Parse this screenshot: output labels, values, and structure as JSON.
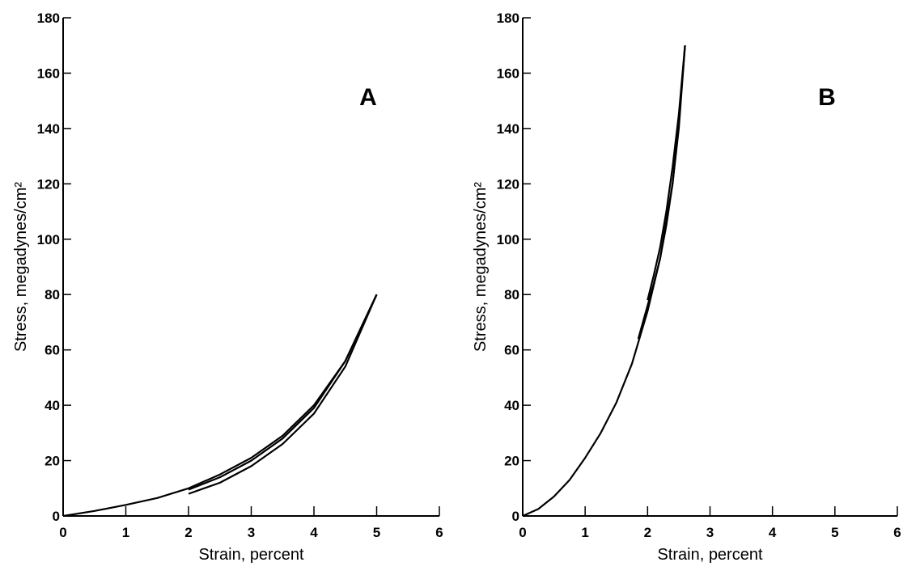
{
  "chart_data": [
    {
      "type": "line",
      "panel_label": "A",
      "xlabel": "Strain, percent",
      "ylabel": "Stress, megadynes/cm²",
      "xlim": [
        0,
        6
      ],
      "ylim": [
        0,
        180
      ],
      "xticks": [
        "0",
        "1",
        "2",
        "3",
        "4",
        "5",
        "6"
      ],
      "yticks": [
        "0",
        "20",
        "40",
        "60",
        "80",
        "100",
        "120",
        "140",
        "160",
        "180"
      ],
      "grid": false,
      "series": [
        {
          "x": [
            0,
            0.5,
            1,
            1.5,
            2,
            2.5,
            3,
            3.5,
            4,
            4.5,
            5
          ],
          "y": [
            0,
            1.8,
            4,
            6.5,
            10,
            15,
            21,
            29,
            40,
            56,
            80
          ]
        },
        {
          "x": [
            5,
            4.5,
            4,
            3.5,
            3,
            2.5,
            2
          ],
          "y": [
            80,
            54,
            37,
            26,
            18,
            12,
            8
          ]
        },
        {
          "x": [
            5,
            4.5,
            4,
            3.5,
            3,
            2.5,
            2
          ],
          "y": [
            80,
            56,
            39,
            28,
            20,
            14,
            9.5
          ]
        }
      ]
    },
    {
      "type": "line",
      "panel_label": "B",
      "xlabel": "Strain, percent",
      "ylabel": "Stress, megadynes/cm²",
      "xlim": [
        0,
        6
      ],
      "ylim": [
        0,
        180
      ],
      "xticks": [
        "0",
        "1",
        "2",
        "3",
        "4",
        "5",
        "6"
      ],
      "yticks": [
        "0",
        "20",
        "40",
        "60",
        "80",
        "100",
        "120",
        "140",
        "160",
        "180"
      ],
      "grid": false,
      "series": [
        {
          "x": [
            0,
            0.25,
            0.5,
            0.75,
            1,
            1.25,
            1.5,
            1.75,
            2,
            2.2,
            2.4,
            2.5,
            2.6
          ],
          "y": [
            0,
            2.5,
            7,
            13,
            21,
            30,
            41,
            55,
            74,
            93,
            120,
            142,
            170
          ]
        },
        {
          "x": [
            2.6,
            2.5,
            2.4,
            2.3,
            2.2,
            2.1,
            2.0,
            1.85
          ],
          "y": [
            170,
            140,
            120,
            105,
            93,
            84,
            76,
            64
          ]
        },
        {
          "x": [
            2.6,
            2.5,
            2.4,
            2.3,
            2.2,
            2.1,
            2.0
          ],
          "y": [
            170,
            145,
            126,
            110,
            97,
            87,
            78
          ]
        }
      ]
    }
  ]
}
